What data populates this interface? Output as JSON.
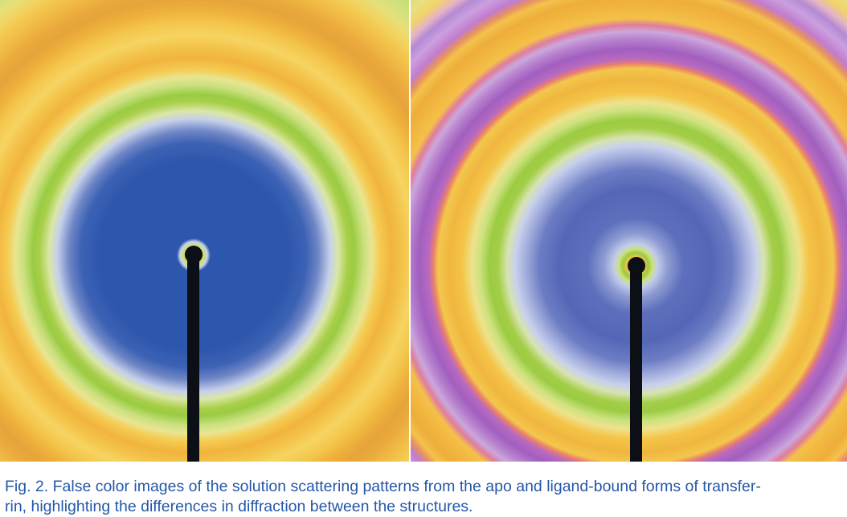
{
  "caption": {
    "line1": "Fig. 2. False color images of the solution scattering patterns from the apo and ligand-bound forms of transfer-",
    "line2": "rin, highlighting the differences in diffraction between the structures."
  },
  "colors": {
    "caption_text": "#2557a8",
    "background": "#ffffff",
    "beamstop": "#0d0f16",
    "center_low_intensity_left": "#2d57ad",
    "center_low_intensity_right": "#5566b7",
    "ring_green": "#9ccb43",
    "ring_orange": "#f1b43d",
    "ring_purple": "#a15fbf"
  },
  "images": [
    {
      "icon": "scattering-pattern-apo",
      "rings": [
        "blue",
        "light-blue",
        "green",
        "yellow",
        "orange",
        "yellow",
        "light-green"
      ]
    },
    {
      "icon": "scattering-pattern-ligand-bound",
      "rings": [
        "blue",
        "light-blue",
        "green",
        "yellow",
        "orange",
        "pink",
        "purple",
        "orange",
        "purple",
        "light-green"
      ]
    }
  ]
}
